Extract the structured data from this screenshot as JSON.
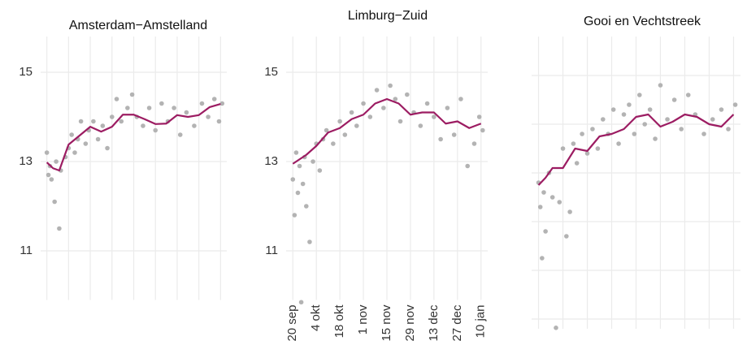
{
  "chart_data": [
    {
      "type": "scatter",
      "title": "Amsterdam−Amstelland",
      "xlim": [
        -4,
        116
      ],
      "xticks": [
        0,
        14,
        28,
        42,
        56,
        70,
        84,
        98,
        112
      ],
      "ylim": [
        9.9,
        15.8
      ],
      "yticks": [
        11,
        13,
        15
      ],
      "grid": true,
      "show_xtick_labels": false,
      "show_ytick_labels": true,
      "series": [
        {
          "mark": "point",
          "color": "#b3b3b3",
          "x": [
            0,
            1,
            2,
            3,
            5,
            6,
            8,
            9,
            12,
            14,
            16,
            18,
            20,
            22,
            25,
            27,
            30,
            33,
            36,
            39,
            42,
            45,
            48,
            52,
            55,
            58,
            62,
            66,
            70,
            74,
            78,
            82,
            86,
            90,
            95,
            100,
            104,
            108,
            111,
            113
          ],
          "values": [
            13.2,
            12.7,
            12.9,
            12.6,
            12.1,
            13.0,
            11.5,
            12.8,
            13.1,
            13.3,
            13.6,
            13.2,
            13.5,
            13.9,
            13.4,
            13.7,
            13.9,
            13.5,
            13.8,
            13.3,
            14.0,
            14.4,
            13.9,
            14.2,
            14.5,
            14.0,
            13.8,
            14.2,
            13.7,
            14.3,
            13.9,
            14.2,
            13.6,
            14.1,
            13.8,
            14.3,
            14.0,
            14.4,
            13.9,
            14.3
          ]
        },
        {
          "mark": "line",
          "color": "#9c1c62",
          "x": [
            0,
            4,
            8,
            14,
            21,
            28,
            35,
            42,
            49,
            56,
            63,
            70,
            77,
            84,
            91,
            98,
            105,
            112
          ],
          "values": [
            12.98,
            12.85,
            12.8,
            13.38,
            13.58,
            13.78,
            13.67,
            13.78,
            14.05,
            14.05,
            13.95,
            13.84,
            13.85,
            14.04,
            14.0,
            14.04,
            14.22,
            14.29
          ]
        }
      ]
    },
    {
      "type": "scatter",
      "title": "Limburg−Zuid",
      "xlim": [
        -4,
        116
      ],
      "xticks": [
        {
          "value": 0,
          "label": "20 sep"
        },
        {
          "value": 14,
          "label": "4 okt"
        },
        {
          "value": 28,
          "label": "18 okt"
        },
        {
          "value": 42,
          "label": "1 nov"
        },
        {
          "value": 56,
          "label": "15 nov"
        },
        {
          "value": 70,
          "label": "29 nov"
        },
        {
          "value": 84,
          "label": "13 dec"
        },
        {
          "value": 98,
          "label": "27 dec"
        },
        {
          "value": 112,
          "label": "10 jan"
        }
      ],
      "ylim": [
        9.9,
        15.8
      ],
      "yticks": [
        11,
        13,
        15
      ],
      "grid": true,
      "show_xtick_labels": true,
      "show_ytick_labels": true,
      "series": [
        {
          "mark": "point",
          "color": "#b3b3b3",
          "x": [
            0,
            1,
            2,
            3,
            4,
            5,
            6,
            7,
            8,
            10,
            12,
            14,
            16,
            18,
            20,
            24,
            28,
            31,
            35,
            38,
            42,
            46,
            50,
            54,
            58,
            61,
            64,
            68,
            72,
            76,
            80,
            84,
            88,
            92,
            96,
            100,
            104,
            108,
            111,
            113
          ],
          "values": [
            12.6,
            11.8,
            13.2,
            12.3,
            12.9,
            9.85,
            12.5,
            13.1,
            12.0,
            11.2,
            13.0,
            13.4,
            12.8,
            13.5,
            13.7,
            13.4,
            13.9,
            13.6,
            14.1,
            13.8,
            14.3,
            14.0,
            14.6,
            14.2,
            14.7,
            14.4,
            13.9,
            14.5,
            14.1,
            13.8,
            14.3,
            14.0,
            13.5,
            14.2,
            13.6,
            14.4,
            12.9,
            13.4,
            14.0,
            13.7
          ]
        },
        {
          "mark": "line",
          "color": "#9c1c62",
          "x": [
            0,
            4,
            8,
            14,
            21,
            28,
            35,
            42,
            49,
            56,
            63,
            70,
            77,
            84,
            91,
            98,
            105,
            112
          ],
          "values": [
            12.95,
            13.05,
            13.15,
            13.35,
            13.65,
            13.75,
            13.95,
            14.05,
            14.3,
            14.4,
            14.3,
            14.05,
            14.1,
            14.1,
            13.85,
            13.9,
            13.75,
            13.85
          ]
        }
      ]
    },
    {
      "type": "scatter",
      "title": "Gooi en Vechtstreek",
      "xlim": [
        -4,
        116
      ],
      "xticks": [
        0,
        14,
        28,
        42,
        56,
        70,
        84,
        98,
        112
      ],
      "ylim": [
        9.8,
        15.8
      ],
      "yticks": [
        10,
        11,
        12,
        13,
        14,
        15
      ],
      "grid": true,
      "show_xtick_labels": false,
      "show_ytick_labels": false,
      "series": [
        {
          "mark": "point",
          "color": "#b3b3b3",
          "x": [
            0,
            1,
            2,
            3,
            4,
            6,
            8,
            10,
            12,
            14,
            16,
            18,
            20,
            22,
            25,
            28,
            31,
            34,
            37,
            40,
            43,
            46,
            49,
            52,
            55,
            58,
            61,
            64,
            67,
            70,
            74,
            78,
            82,
            86,
            90,
            95,
            100,
            105,
            109,
            113
          ],
          "values": [
            12.8,
            12.3,
            11.25,
            12.6,
            11.8,
            13.0,
            12.5,
            9.82,
            12.4,
            13.5,
            11.7,
            12.2,
            13.6,
            13.2,
            13.8,
            13.4,
            13.9,
            13.5,
            14.1,
            13.8,
            14.3,
            13.6,
            14.2,
            14.4,
            13.8,
            14.6,
            14.0,
            14.3,
            13.7,
            14.8,
            14.1,
            14.5,
            13.9,
            14.6,
            14.2,
            13.8,
            14.1,
            14.3,
            13.9,
            14.4
          ]
        },
        {
          "mark": "line",
          "color": "#9c1c62",
          "x": [
            0,
            4,
            8,
            14,
            21,
            28,
            35,
            42,
            49,
            56,
            63,
            70,
            77,
            84,
            91,
            98,
            105,
            112
          ],
          "values": [
            12.75,
            12.9,
            13.1,
            13.1,
            13.5,
            13.45,
            13.75,
            13.8,
            13.9,
            14.15,
            14.2,
            13.95,
            14.05,
            14.2,
            14.15,
            14.0,
            13.95,
            14.2
          ]
        }
      ]
    }
  ]
}
